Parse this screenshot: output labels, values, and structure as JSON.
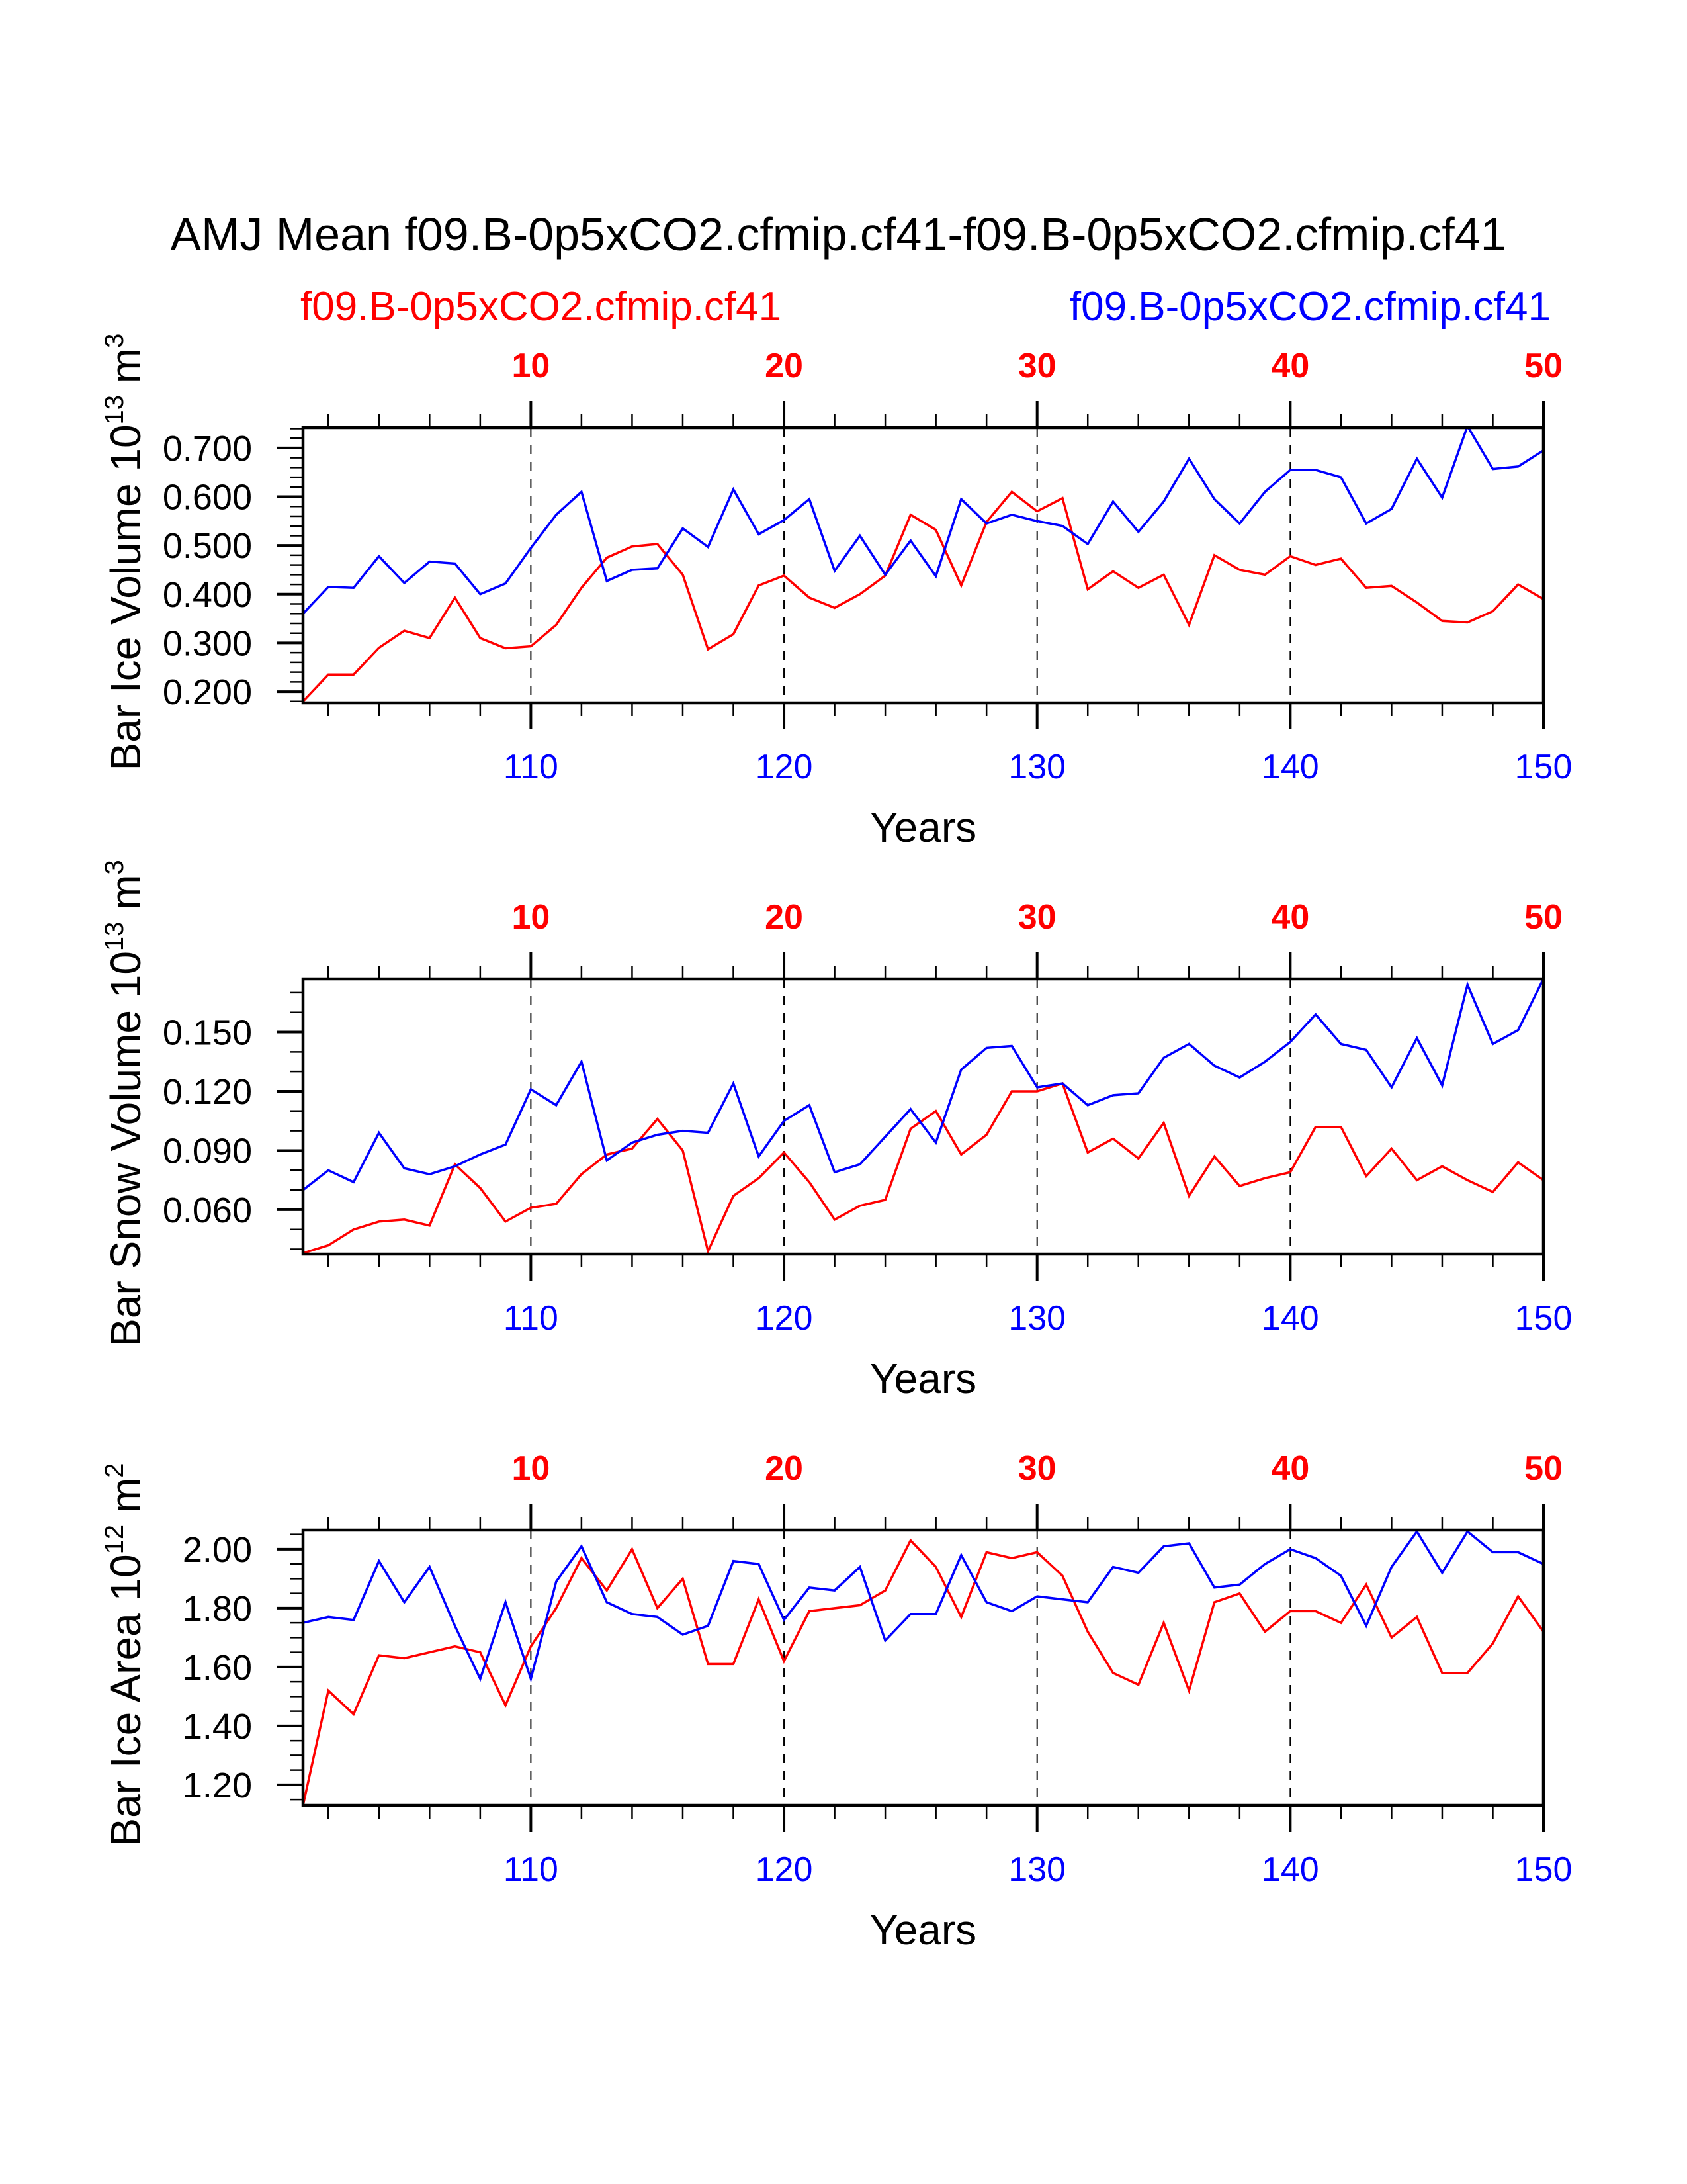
{
  "title": "AMJ Mean f09.B-0p5xCO2.cfmip.cf41-f09.B-0p5xCO2.cfmip.cf41",
  "legend": {
    "left": {
      "label": "f09.B-0p5xCO2.cfmip.cf41",
      "color": "#ff0000"
    },
    "right": {
      "label": "f09.B-0p5xCO2.cfmip.cf41",
      "color": "#0000ff"
    }
  },
  "chart_data": [
    {
      "type": "line",
      "ylabel": {
        "text": "Bar Ice Volume 10",
        "exp": "13",
        "unit": " m",
        "unit_exp": "3"
      },
      "xlabel": "Years",
      "xlim": [
        101,
        150
      ],
      "ylim": [
        0.177,
        0.742
      ],
      "yticks": [
        0.2,
        0.3,
        0.4,
        0.5,
        0.6,
        0.7
      ],
      "ytick_labels": [
        "0.200",
        "0.300",
        "0.400",
        "0.500",
        "0.600",
        "0.700"
      ],
      "yminor_step": 0.02,
      "top_ticks": [
        110,
        120,
        130,
        140,
        150
      ],
      "top_tick_labels": [
        "10",
        "20",
        "30",
        "40",
        "50"
      ],
      "bottom_tick_labels": [
        "110",
        "120",
        "130",
        "140",
        "150"
      ],
      "series": [
        {
          "name": "f09.B-0p5xCO2.cfmip.cf41 (red)",
          "color": "#ff0000",
          "values": [
            0.18,
            0.235,
            0.235,
            0.29,
            0.325,
            0.31,
            0.393,
            0.31,
            0.289,
            0.293,
            0.337,
            0.413,
            0.475,
            0.498,
            0.503,
            0.44,
            0.287,
            0.318,
            0.418,
            0.438,
            0.393,
            0.372,
            0.4,
            0.438,
            0.563,
            0.532,
            0.418,
            0.548,
            0.61,
            0.57,
            0.597,
            0.41,
            0.447,
            0.413,
            0.44,
            0.337,
            0.48,
            0.45,
            0.44,
            0.478,
            0.46,
            0.473,
            0.413,
            0.417,
            0.383,
            0.345,
            0.342,
            0.365,
            0.42,
            0.39
          ]
        },
        {
          "name": "f09.B-0p5xCO2.cfmip.cf41 (blue)",
          "color": "#0000ff",
          "values": [
            0.36,
            0.415,
            0.413,
            0.478,
            0.423,
            0.467,
            0.463,
            0.4,
            0.422,
            0.495,
            0.563,
            0.61,
            0.427,
            0.45,
            0.453,
            0.535,
            0.497,
            0.615,
            0.523,
            0.552,
            0.595,
            0.448,
            0.52,
            0.44,
            0.51,
            0.437,
            0.595,
            0.545,
            0.563,
            0.55,
            0.54,
            0.503,
            0.59,
            0.528,
            0.59,
            0.678,
            0.595,
            0.545,
            0.61,
            0.655,
            0.655,
            0.64,
            0.545,
            0.575,
            0.678,
            0.598,
            0.745,
            0.657,
            0.662,
            0.695
          ]
        }
      ]
    },
    {
      "type": "line",
      "ylabel": {
        "text": "Bar Snow Volume 10",
        "exp": "13",
        "unit": " m",
        "unit_exp": "3"
      },
      "xlabel": "Years",
      "xlim": [
        101,
        150
      ],
      "ylim": [
        0.0375,
        0.177
      ],
      "yticks": [
        0.06,
        0.09,
        0.12,
        0.15
      ],
      "ytick_labels": [
        "0.060",
        "0.090",
        "0.120",
        "0.150"
      ],
      "yminor_step": 0.01,
      "top_ticks": [
        110,
        120,
        130,
        140,
        150
      ],
      "top_tick_labels": [
        "10",
        "20",
        "30",
        "40",
        "50"
      ],
      "bottom_tick_labels": [
        "110",
        "120",
        "130",
        "140",
        "150"
      ],
      "series": [
        {
          "name": "f09.B-0p5xCO2.cfmip.cf41 (red)",
          "color": "#ff0000",
          "values": [
            0.038,
            0.042,
            0.05,
            0.054,
            0.055,
            0.052,
            0.083,
            0.071,
            0.054,
            0.061,
            0.063,
            0.078,
            0.088,
            0.091,
            0.106,
            0.09,
            0.039,
            0.067,
            0.076,
            0.089,
            0.074,
            0.055,
            0.062,
            0.065,
            0.101,
            0.11,
            0.088,
            0.098,
            0.12,
            0.12,
            0.124,
            0.089,
            0.096,
            0.086,
            0.104,
            0.067,
            0.087,
            0.072,
            0.076,
            0.079,
            0.102,
            0.102,
            0.077,
            0.091,
            0.075,
            0.082,
            0.075,
            0.069,
            0.084,
            0.075
          ]
        },
        {
          "name": "f09.B-0p5xCO2.cfmip.cf41 (blue)",
          "color": "#0000ff",
          "values": [
            0.07,
            0.08,
            0.074,
            0.099,
            0.081,
            0.078,
            0.082,
            0.088,
            0.093,
            0.121,
            0.113,
            0.135,
            0.085,
            0.094,
            0.098,
            0.1,
            0.099,
            0.124,
            0.087,
            0.105,
            0.113,
            0.079,
            0.083,
            0.097,
            0.111,
            0.094,
            0.131,
            0.142,
            0.143,
            0.122,
            0.124,
            0.113,
            0.118,
            0.119,
            0.137,
            0.144,
            0.133,
            0.127,
            0.135,
            0.145,
            0.159,
            0.144,
            0.141,
            0.122,
            0.147,
            0.123,
            0.174,
            0.144,
            0.151,
            0.177
          ]
        }
      ]
    },
    {
      "type": "line",
      "ylabel": {
        "text": "Bar Ice Area 10",
        "exp": "12",
        "unit": " m",
        "unit_exp": "2"
      },
      "xlabel": "Years",
      "xlim": [
        101,
        150
      ],
      "ylim": [
        1.13,
        2.065
      ],
      "yticks": [
        1.2,
        1.4,
        1.6,
        1.8,
        2.0
      ],
      "ytick_labels": [
        "1.20",
        "1.40",
        "1.60",
        "1.80",
        "2.00"
      ],
      "yminor_step": 0.05,
      "top_ticks": [
        110,
        120,
        130,
        140,
        150
      ],
      "top_tick_labels": [
        "10",
        "20",
        "30",
        "40",
        "50"
      ],
      "bottom_tick_labels": [
        "110",
        "120",
        "130",
        "140",
        "150"
      ],
      "series": [
        {
          "name": "f09.B-0p5xCO2.cfmip.cf41 (red)",
          "color": "#ff0000",
          "values": [
            1.13,
            1.52,
            1.44,
            1.64,
            1.63,
            1.65,
            1.67,
            1.65,
            1.47,
            1.67,
            1.8,
            1.97,
            1.86,
            2.0,
            1.8,
            1.9,
            1.61,
            1.61,
            1.83,
            1.62,
            1.79,
            1.8,
            1.81,
            1.86,
            2.03,
            1.94,
            1.77,
            1.99,
            1.97,
            1.99,
            1.91,
            1.72,
            1.58,
            1.54,
            1.75,
            1.52,
            1.82,
            1.85,
            1.72,
            1.79,
            1.79,
            1.75,
            1.88,
            1.7,
            1.77,
            1.58,
            1.58,
            1.68,
            1.84,
            1.72
          ]
        },
        {
          "name": "f09.B-0p5xCO2.cfmip.cf41 (blue)",
          "color": "#0000ff",
          "values": [
            1.75,
            1.77,
            1.76,
            1.96,
            1.82,
            1.94,
            1.74,
            1.56,
            1.82,
            1.56,
            1.89,
            2.01,
            1.82,
            1.78,
            1.77,
            1.71,
            1.74,
            1.96,
            1.95,
            1.76,
            1.87,
            1.86,
            1.94,
            1.69,
            1.78,
            1.78,
            1.98,
            1.82,
            1.79,
            1.84,
            1.83,
            1.82,
            1.94,
            1.92,
            2.01,
            2.02,
            1.87,
            1.88,
            1.95,
            2.0,
            1.97,
            1.91,
            1.74,
            1.94,
            2.06,
            1.92,
            2.06,
            1.99,
            1.99,
            1.95
          ]
        }
      ]
    }
  ]
}
